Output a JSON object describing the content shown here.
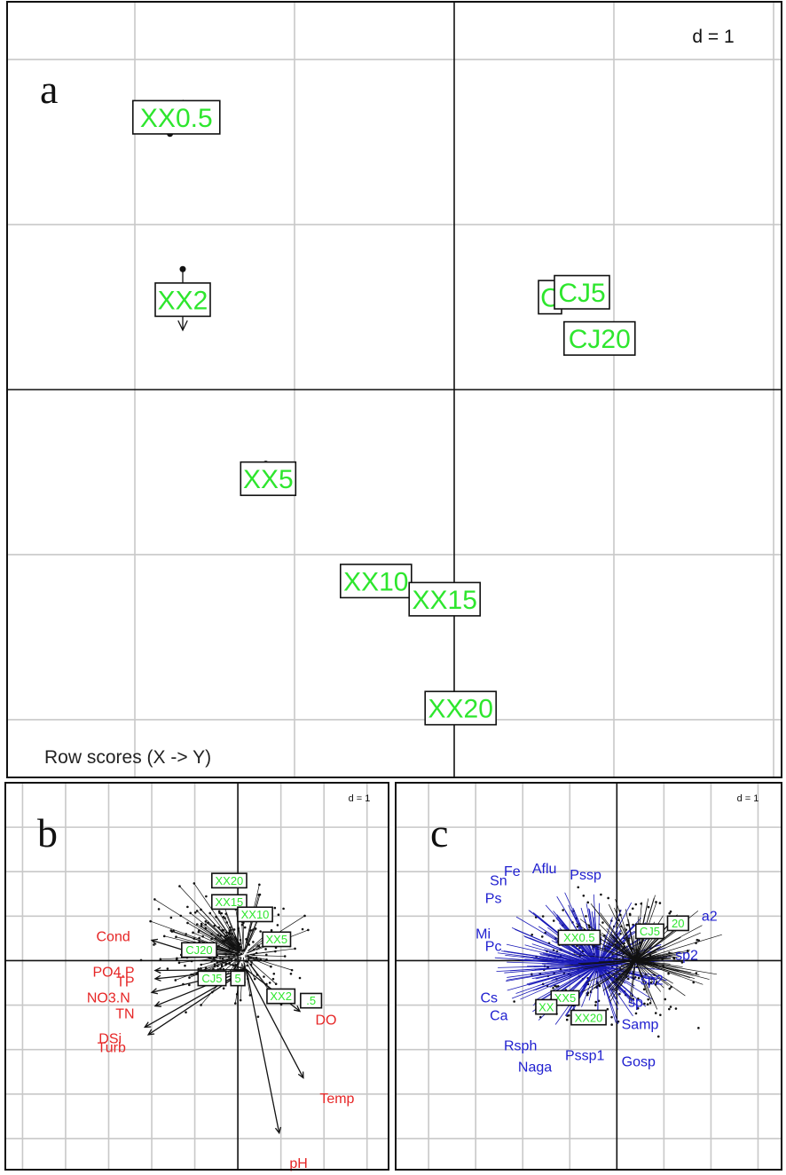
{
  "chart_data": [
    {
      "panel": "a",
      "type": "scatter",
      "caption": "Row scores (X -> Y)",
      "scale_label": "d = 1",
      "xlim": [
        -2.8,
        2.05
      ],
      "ylim": [
        -2.35,
        2.35
      ],
      "grid": true,
      "points": [
        {
          "label": "XX0.5",
          "x": -1.7,
          "y": 1.75,
          "x2": -1.78,
          "y2": 1.55
        },
        {
          "label": "XX2",
          "x": -1.7,
          "y": 0.36,
          "x2": -1.7,
          "y2": 0.73
        },
        {
          "label": "XX5",
          "x": -1.15,
          "y": -0.63,
          "x2": -1.18,
          "y2": -0.45
        },
        {
          "label": "XX10",
          "x": -0.49,
          "y": -1.16,
          "x2": -0.49,
          "y2": -1.16
        },
        {
          "label": "XX15",
          "x": -0.07,
          "y": -1.22,
          "x2": -0.05,
          "y2": -1.32
        },
        {
          "label": "XX20",
          "x": 0.04,
          "y": -1.93,
          "x2": 0.04,
          "y2": -1.93
        },
        {
          "label": "C",
          "x": 0.6,
          "y": 0.56,
          "x2": 0.6,
          "y2": 0.56
        },
        {
          "label": "CJ5",
          "x": 0.8,
          "y": 0.59,
          "x2": 0.8,
          "y2": 0.59
        },
        {
          "label": "CJ20",
          "x": 0.91,
          "y": 0.31,
          "x2": 0.91,
          "y2": 0.31
        }
      ]
    },
    {
      "panel": "b",
      "type": "scatter",
      "scale_label": "d = 1",
      "xlim": [
        -2.7,
        1.75
      ],
      "ylim": [
        -2.35,
        2.0
      ],
      "grid": true,
      "env_vectors": [
        {
          "label": "Cond",
          "x": -1.25,
          "y": 0.27
        },
        {
          "label": "PO4.P",
          "x": -1.2,
          "y": -0.13
        },
        {
          "label": "TP",
          "x": -1.2,
          "y": -0.24
        },
        {
          "label": "NO3.N",
          "x": -1.25,
          "y": -0.42
        },
        {
          "label": "TN",
          "x": -1.2,
          "y": -0.6
        },
        {
          "label": "DSi",
          "x": -1.35,
          "y": -0.88
        },
        {
          "label": "Turb",
          "x": -1.3,
          "y": -0.98
        },
        {
          "label": "DO",
          "x": 0.9,
          "y": -0.67
        },
        {
          "label": "Temp",
          "x": 0.95,
          "y": -1.55
        },
        {
          "label": "pH",
          "x": 0.6,
          "y": -2.28
        }
      ],
      "site_labels": [
        {
          "label": "XX20",
          "x": -0.1,
          "y": 0.9
        },
        {
          "label": "XX15",
          "x": -0.1,
          "y": 0.66
        },
        {
          "label": "XX10",
          "x": 0.2,
          "y": 0.52
        },
        {
          "label": "XX5",
          "x": 0.45,
          "y": 0.24
        },
        {
          "label": "CJ20",
          "x": -0.45,
          "y": 0.12
        },
        {
          "label": "CJ5",
          "x": -0.3,
          "y": -0.2
        },
        {
          "label": "5",
          "x": 0.0,
          "y": -0.2
        },
        {
          "label": "XX2",
          "x": 0.5,
          "y": -0.4
        },
        {
          "label": ".5",
          "x": 0.85,
          "y": -0.45
        }
      ]
    },
    {
      "panel": "c",
      "type": "scatter",
      "scale_label": "d = 1",
      "xlim": [
        -2.35,
        1.75
      ],
      "ylim": [
        -2.35,
        2.0
      ],
      "grid": true,
      "species": [
        {
          "label": "Fe",
          "x": -1.2,
          "y": 1.0
        },
        {
          "label": "Aflu",
          "x": -0.9,
          "y": 1.03
        },
        {
          "label": "Pssp",
          "x": -0.5,
          "y": 0.96
        },
        {
          "label": "Sn",
          "x": -1.35,
          "y": 0.9
        },
        {
          "label": "Ps",
          "x": -1.4,
          "y": 0.7
        },
        {
          "label": "Mi",
          "x": -1.5,
          "y": 0.3
        },
        {
          "label": "Pc",
          "x": -1.4,
          "y": 0.16
        },
        {
          "label": "Cs",
          "x": -1.45,
          "y": -0.42
        },
        {
          "label": "Ca",
          "x": -1.35,
          "y": -0.62
        },
        {
          "label": "Rsph",
          "x": -1.2,
          "y": -0.96
        },
        {
          "label": "Naga",
          "x": -1.05,
          "y": -1.2
        },
        {
          "label": "Pssp1",
          "x": -0.55,
          "y": -1.07
        },
        {
          "label": "Gosp",
          "x": 0.05,
          "y": -1.14
        },
        {
          "label": "Samp",
          "x": 0.05,
          "y": -0.72
        },
        {
          "label": "sp2",
          "x": 0.25,
          "y": -0.22
        },
        {
          "label": "sp",
          "x": 0.12,
          "y": -0.47
        },
        {
          "label": "sp2",
          "x": 0.62,
          "y": 0.06
        },
        {
          "label": "a2",
          "x": 0.9,
          "y": 0.5
        }
      ],
      "site_labels": [
        {
          "label": "XX0.5",
          "x": -0.4,
          "y": 0.26
        },
        {
          "label": "CJ5",
          "x": 0.35,
          "y": 0.33
        },
        {
          "label": "20",
          "x": 0.65,
          "y": 0.42
        },
        {
          "label": "XX5",
          "x": -0.55,
          "y": -0.42
        },
        {
          "label": "XX20",
          "x": -0.3,
          "y": -0.64
        },
        {
          "label": "XX",
          "x": -0.75,
          "y": -0.52
        }
      ]
    }
  ]
}
